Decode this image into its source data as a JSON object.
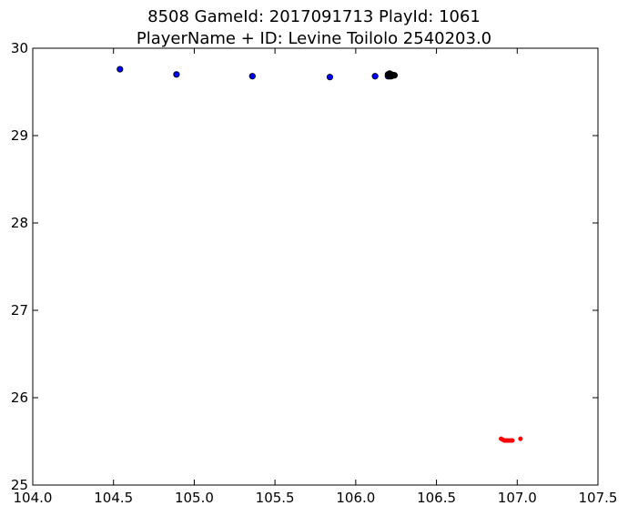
{
  "chart_data": {
    "type": "scatter",
    "title": "8508 GameId: 2017091713 PlayId: 1061",
    "subtitle": "PlayerName + ID: Levine Toilolo 2540203.0",
    "xlabel": "",
    "ylabel": "",
    "xlim": [
      104.0,
      107.5
    ],
    "ylim": [
      25,
      30
    ],
    "x_ticks": [
      "104.0",
      "104.5",
      "105.0",
      "105.5",
      "106.0",
      "106.5",
      "107.0",
      "107.5"
    ],
    "y_ticks": [
      "25",
      "26",
      "27",
      "28",
      "29",
      "30"
    ],
    "grid": false,
    "legend": "none",
    "series": [
      {
        "color": "#0000ff",
        "x": [
          104.54,
          104.89,
          105.36,
          105.84,
          106.12,
          106.2,
          106.22,
          106.23
        ],
        "y": [
          29.76,
          29.7,
          29.68,
          29.67,
          29.68,
          29.68,
          29.69,
          29.69
        ]
      },
      {
        "color": "#000000",
        "x": [
          106.2,
          106.21,
          106.22,
          106.23,
          106.24,
          106.21,
          106.22,
          106.23
        ],
        "y": [
          29.7,
          29.71,
          29.7,
          29.69,
          29.69,
          29.68,
          29.68,
          29.69
        ]
      },
      {
        "color": "#ff0000",
        "x": [
          106.9,
          106.91,
          106.92,
          106.93,
          106.94,
          106.95,
          106.96,
          106.97,
          107.02
        ],
        "y": [
          25.53,
          25.52,
          25.51,
          25.51,
          25.51,
          25.51,
          25.51,
          25.51,
          25.53
        ]
      }
    ]
  }
}
